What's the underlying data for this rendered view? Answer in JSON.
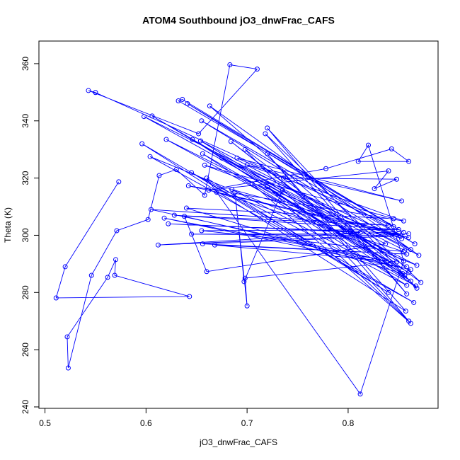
{
  "chart_data": {
    "type": "line",
    "title": "ATOM4 Southbound jO3_dnwFrac_CAFS",
    "x_label": "jO3_dnwFrac_CAFS",
    "y_label": "Theta (K)",
    "xlim": [
      0.494,
      0.889
    ],
    "ylim": [
      239.5,
      367.9
    ],
    "xticks": [
      0.5,
      0.6,
      0.7,
      0.8
    ],
    "yticks": [
      240,
      260,
      280,
      300,
      320,
      340,
      360
    ],
    "color": "#0000ff",
    "markers": true,
    "x": [
      0.573,
      0.52,
      0.511,
      0.643,
      0.569,
      0.57,
      0.562,
      0.522,
      0.523,
      0.546,
      0.571,
      0.602,
      0.613,
      0.63,
      0.658,
      0.683,
      0.71,
      0.652,
      0.543,
      0.55,
      0.845,
      0.632,
      0.636,
      0.855,
      0.641,
      0.866,
      0.655,
      0.862,
      0.598,
      0.855,
      0.606,
      0.858,
      0.654,
      0.87,
      0.663,
      0.856,
      0.646,
      0.862,
      0.684,
      0.868,
      0.72,
      0.858,
      0.718,
      0.872,
      0.698,
      0.86,
      0.72,
      0.857,
      0.596,
      0.865,
      0.604,
      0.868,
      0.62,
      0.86,
      0.656,
      0.858,
      0.645,
      0.84,
      0.66,
      0.812,
      0.855,
      0.82,
      0.81,
      0.86,
      0.843,
      0.778,
      0.662,
      0.84,
      0.826,
      0.848,
      0.736,
      0.69,
      0.853,
      0.7,
      0.855,
      0.642,
      0.85,
      0.622,
      0.812,
      0.612,
      0.86,
      0.645,
      0.852,
      0.656,
      0.858,
      0.668,
      0.848,
      0.698,
      0.7,
      0.688,
      0.697,
      0.735,
      0.837,
      0.66,
      0.638,
      0.862,
      0.618,
      0.838,
      0.605,
      0.84,
      0.628,
      0.85,
      0.655,
      0.855,
      0.67,
      0.86,
      0.685,
      0.867,
      0.705,
      0.862,
      0.72,
      0.854,
      0.64,
      0.845,
      0.658,
      0.853,
      0.675,
      0.856
    ],
    "values": [
      318.7,
      289.0,
      278.1,
      278.6,
      286.0,
      291.5,
      285.3,
      264.5,
      253.6,
      286.0,
      301.6,
      305.5,
      320.9,
      323.0,
      314.0,
      359.6,
      358.1,
      335.5,
      350.6,
      349.9,
      303.0,
      347.0,
      347.5,
      301.0,
      346.0,
      297.0,
      340.0,
      295.0,
      341.5,
      291.0,
      341.7,
      289.0,
      333.0,
      293.0,
      345.2,
      286.0,
      333.5,
      284.0,
      332.8,
      281.5,
      337.5,
      279.5,
      335.5,
      283.5,
      330.0,
      270.0,
      328.5,
      273.5,
      332.0,
      276.5,
      327.5,
      289.5,
      333.5,
      287.0,
      328.5,
      282.5,
      321.9,
      280.0,
      320.0,
      244.5,
      291.0,
      331.5,
      325.8,
      325.8,
      330.2,
      323.3,
      315.8,
      322.5,
      316.3,
      319.6,
      320.0,
      327.0,
      312.0,
      324.6,
      305.0,
      317.3,
      300.7,
      304.0,
      301.0,
      296.6,
      300.5,
      300.4,
      299.8,
      297.0,
      293.4,
      296.6,
      290.7,
      285.0,
      275.3,
      315.0,
      283.8,
      315.8,
      297.0,
      287.3,
      306.6,
      288.0,
      306.0,
      291.0,
      309.0,
      303.5,
      307.0,
      302.0,
      301.6,
      294.3,
      315.0,
      299.2,
      316.0,
      282.3,
      318.0,
      269.2,
      317.0,
      286.6,
      309.5,
      305.8,
      324.5,
      298.8,
      327.0,
      294.7
    ]
  }
}
